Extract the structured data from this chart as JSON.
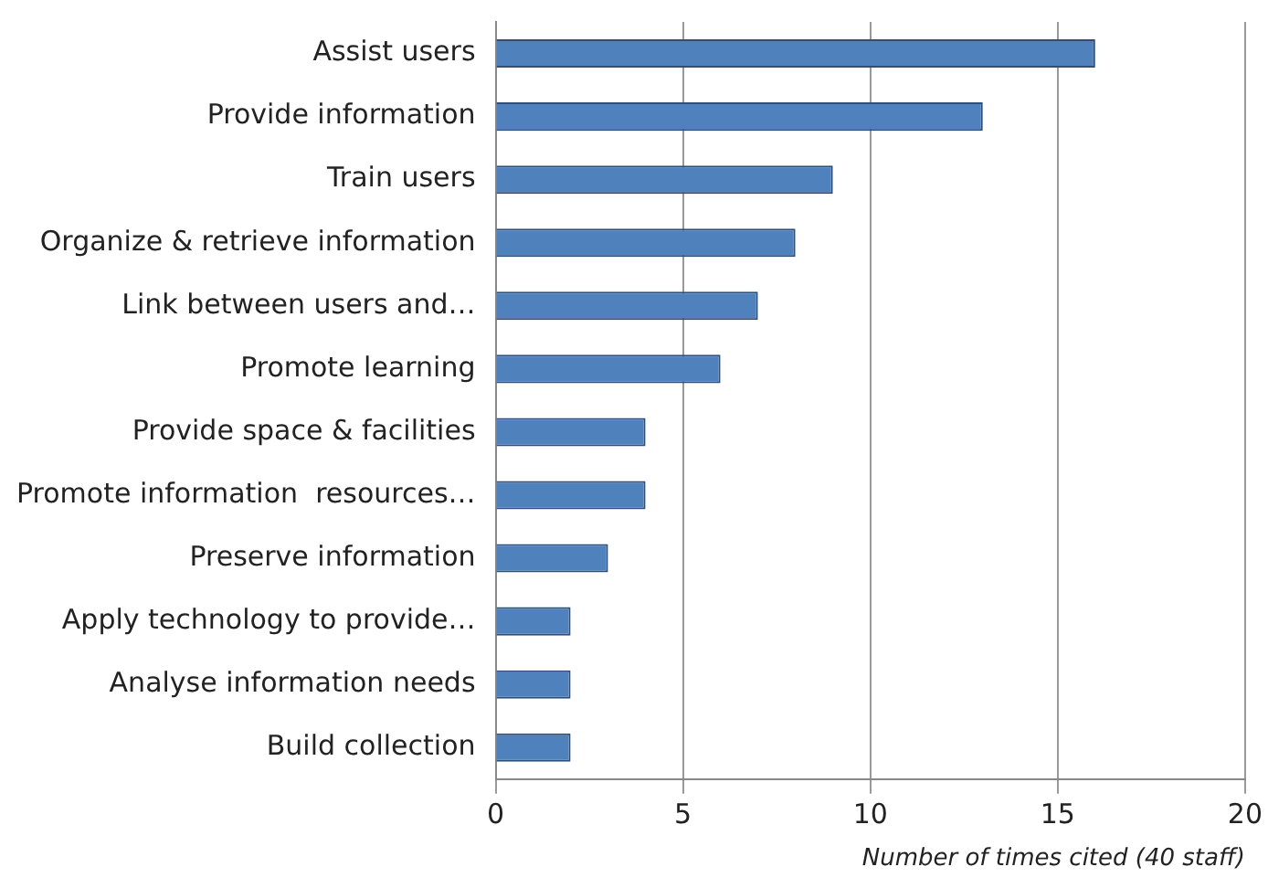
{
  "chart_data": {
    "type": "bar",
    "orientation": "horizontal",
    "xlabel": "Number of times cited (40 staff)",
    "categories": [
      "Assist users",
      "Provide information",
      "Train users",
      "Organize & retrieve information",
      "Link between users and…",
      "Promote learning",
      "Provide space & facilities",
      "Promote information  resources…",
      "Preserve information",
      "Apply technology to provide…",
      "Analyse information needs",
      "Build collection"
    ],
    "values": [
      16,
      13,
      9,
      8,
      7,
      6,
      4,
      4,
      3,
      2,
      2,
      2
    ],
    "color": "#4f81bd",
    "xlim": [
      0,
      20
    ],
    "xticks": [
      0,
      5,
      10,
      15,
      20
    ],
    "grid": "x",
    "legend": false
  }
}
